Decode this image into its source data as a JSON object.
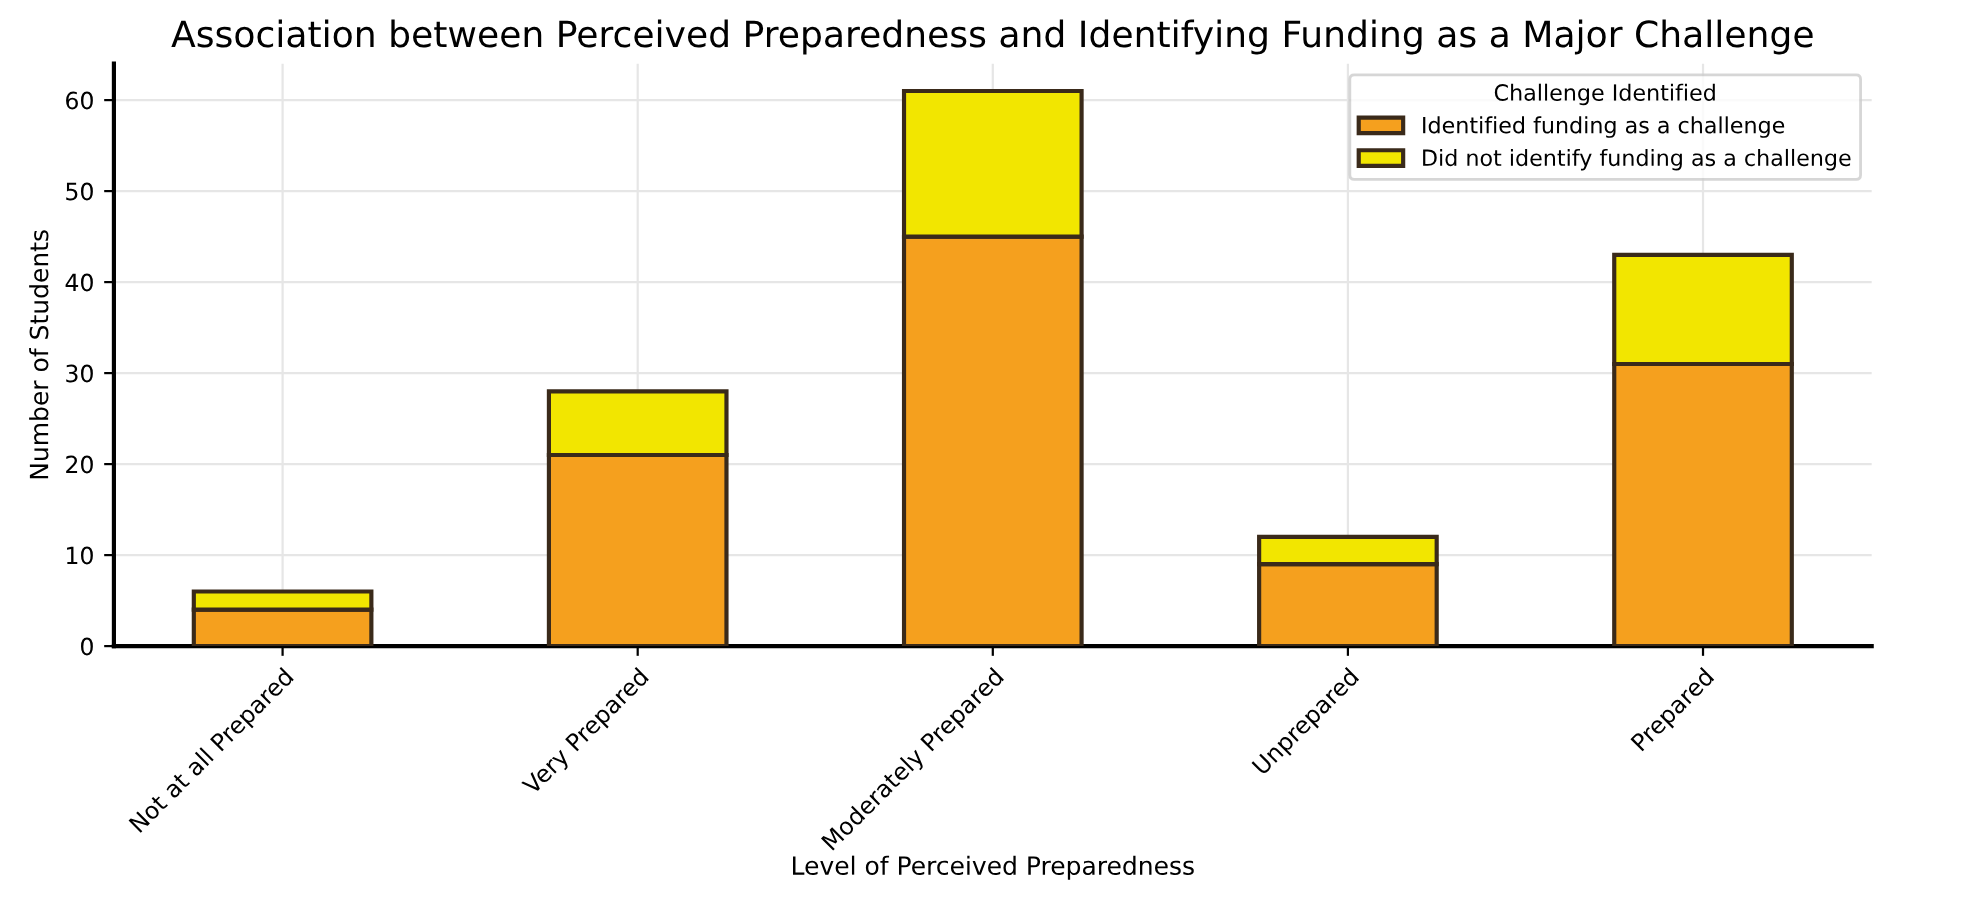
{
  "chart_data": {
    "type": "bar",
    "title": "Association between Perceived Preparedness and Identifying Funding as a Major Challenge",
    "xlabel": "Level of Perceived Preparedness",
    "ylabel": "Number of Students",
    "legend_title": "Challenge Identified",
    "categories": [
      "Not at all Prepared",
      "Very Prepared",
      "Moderately Prepared",
      "Unprepared",
      "Prepared"
    ],
    "series": [
      {
        "name": "Identified funding as a challenge",
        "color": "#f5a01e",
        "values": [
          4,
          21,
          45,
          9,
          31
        ]
      },
      {
        "name": "Did not identify funding as a challenge",
        "color": "#f2e600",
        "values": [
          2,
          7,
          16,
          3,
          12
        ]
      }
    ],
    "stacked": true,
    "ylim": [
      0,
      64
    ],
    "yticks": [
      0,
      10,
      20,
      30,
      40,
      50,
      60
    ],
    "grid": true,
    "legend": "top right"
  }
}
